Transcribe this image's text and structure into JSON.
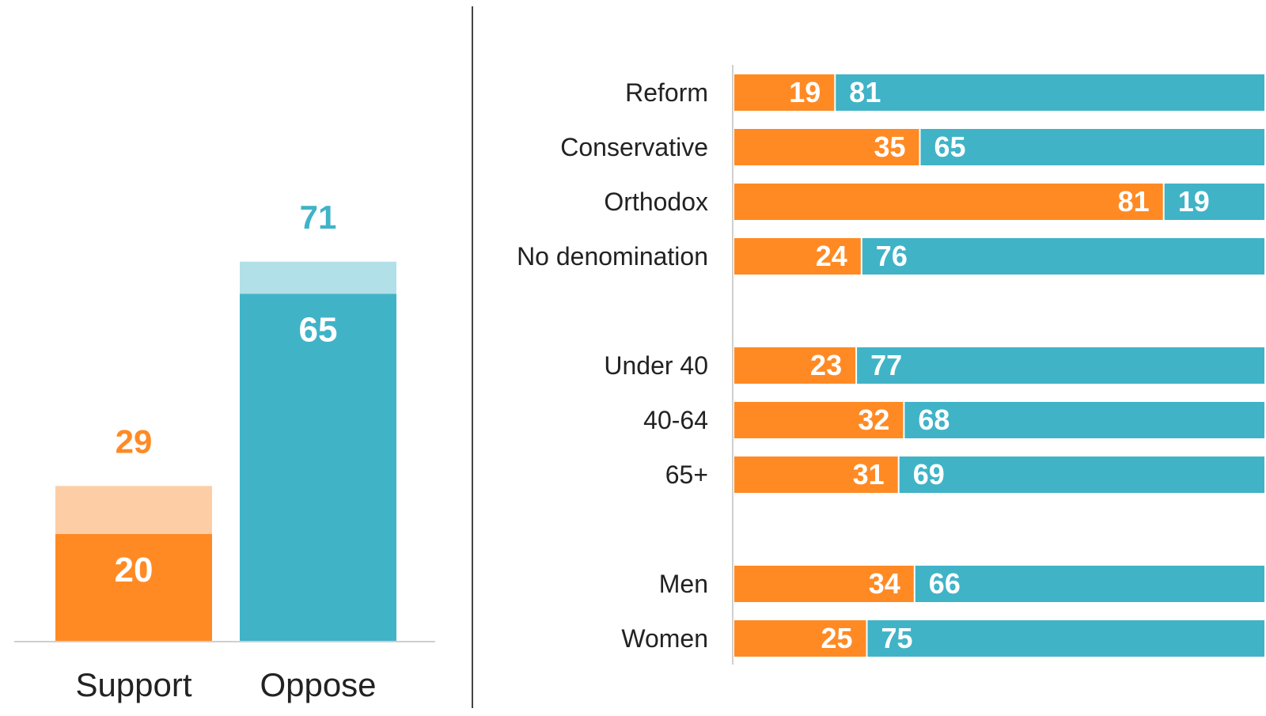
{
  "colors": {
    "support": "#FF8A24",
    "support_light": "#FDCEA6",
    "oppose": "#40B3C7",
    "oppose_light": "#B1E0E8"
  },
  "chart_data": [
    {
      "type": "bar",
      "categories": [
        "Support",
        "Oppose"
      ],
      "series": [
        {
          "values": [
            20,
            65
          ]
        },
        {
          "values": [
            9,
            6
          ]
        }
      ],
      "totals": [
        "29",
        "71"
      ],
      "inner_labels": [
        "20",
        "65"
      ],
      "ylim": [
        0,
        100
      ]
    },
    {
      "type": "bar",
      "orientation": "horizontal",
      "stacked": true,
      "groups": [
        [
          "Reform",
          "Conservative",
          "Orthodox",
          "No denomination"
        ],
        [
          "Under 40",
          "40-64",
          "65+"
        ],
        [
          "Men",
          "Women"
        ]
      ],
      "categories": [
        "Reform",
        "Conservative",
        "Orthodox",
        "No denomination",
        "Under 40",
        "40-64",
        "65+",
        "Men",
        "Women"
      ],
      "series": [
        {
          "values": [
            19,
            35,
            81,
            24,
            23,
            32,
            31,
            34,
            25
          ]
        },
        {
          "values": [
            81,
            65,
            19,
            76,
            77,
            68,
            69,
            66,
            75
          ]
        }
      ],
      "xlim": [
        0,
        100
      ]
    }
  ]
}
